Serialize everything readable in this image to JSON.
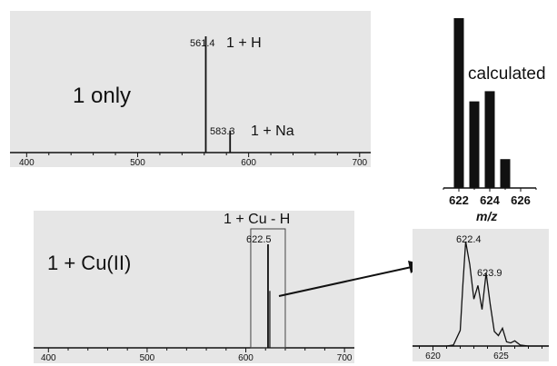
{
  "chart_data": [
    {
      "type": "line",
      "panel": "top-spectrum",
      "label": "1 only",
      "xlim": [
        385,
        710
      ],
      "xticks": [
        400,
        500,
        600,
        700
      ],
      "peaks": [
        {
          "mz": 561.4,
          "label": "561.4",
          "relative_intensity": 1.0,
          "ion": "1 + H"
        },
        {
          "mz": 583.3,
          "label": "583.3",
          "relative_intensity": 0.19,
          "ion": "1 + Na"
        }
      ]
    },
    {
      "type": "line",
      "panel": "bottom-spectrum",
      "label": "1 + Cu(II)",
      "xlim": [
        385,
        710
      ],
      "xticks": [
        400,
        500,
        600,
        700
      ],
      "peaks": [
        {
          "mz": 622.5,
          "label": "622.5",
          "relative_intensity": 1.0,
          "ion": "1 + Cu - H"
        }
      ],
      "highlight_box": [
        605,
        640
      ]
    },
    {
      "type": "bar",
      "panel": "calculated",
      "label": "calculated",
      "xlabel": "m/z",
      "categories": [
        622,
        623,
        624,
        625
      ],
      "values": [
        100,
        51,
        57,
        17
      ],
      "xlim": [
        621,
        627
      ],
      "xticks": [
        622,
        624,
        626
      ]
    },
    {
      "type": "line",
      "panel": "zoom",
      "xlim": [
        618.5,
        628.5
      ],
      "xticks": [
        620,
        625
      ],
      "x": [
        621.0,
        621.5,
        622.0,
        622.2,
        622.4,
        622.7,
        623.0,
        623.3,
        623.6,
        623.9,
        624.2,
        624.5,
        624.8,
        625.1,
        625.4,
        625.7,
        626.0,
        626.4,
        627.0
      ],
      "y": [
        0,
        1,
        15,
        60,
        100,
        78,
        45,
        58,
        35,
        70,
        40,
        14,
        10,
        17,
        4,
        3,
        5,
        1,
        0
      ],
      "annotations": [
        {
          "mz": 622.4,
          "label": "622.4"
        },
        {
          "mz": 623.9,
          "label": "623.9"
        }
      ]
    }
  ]
}
